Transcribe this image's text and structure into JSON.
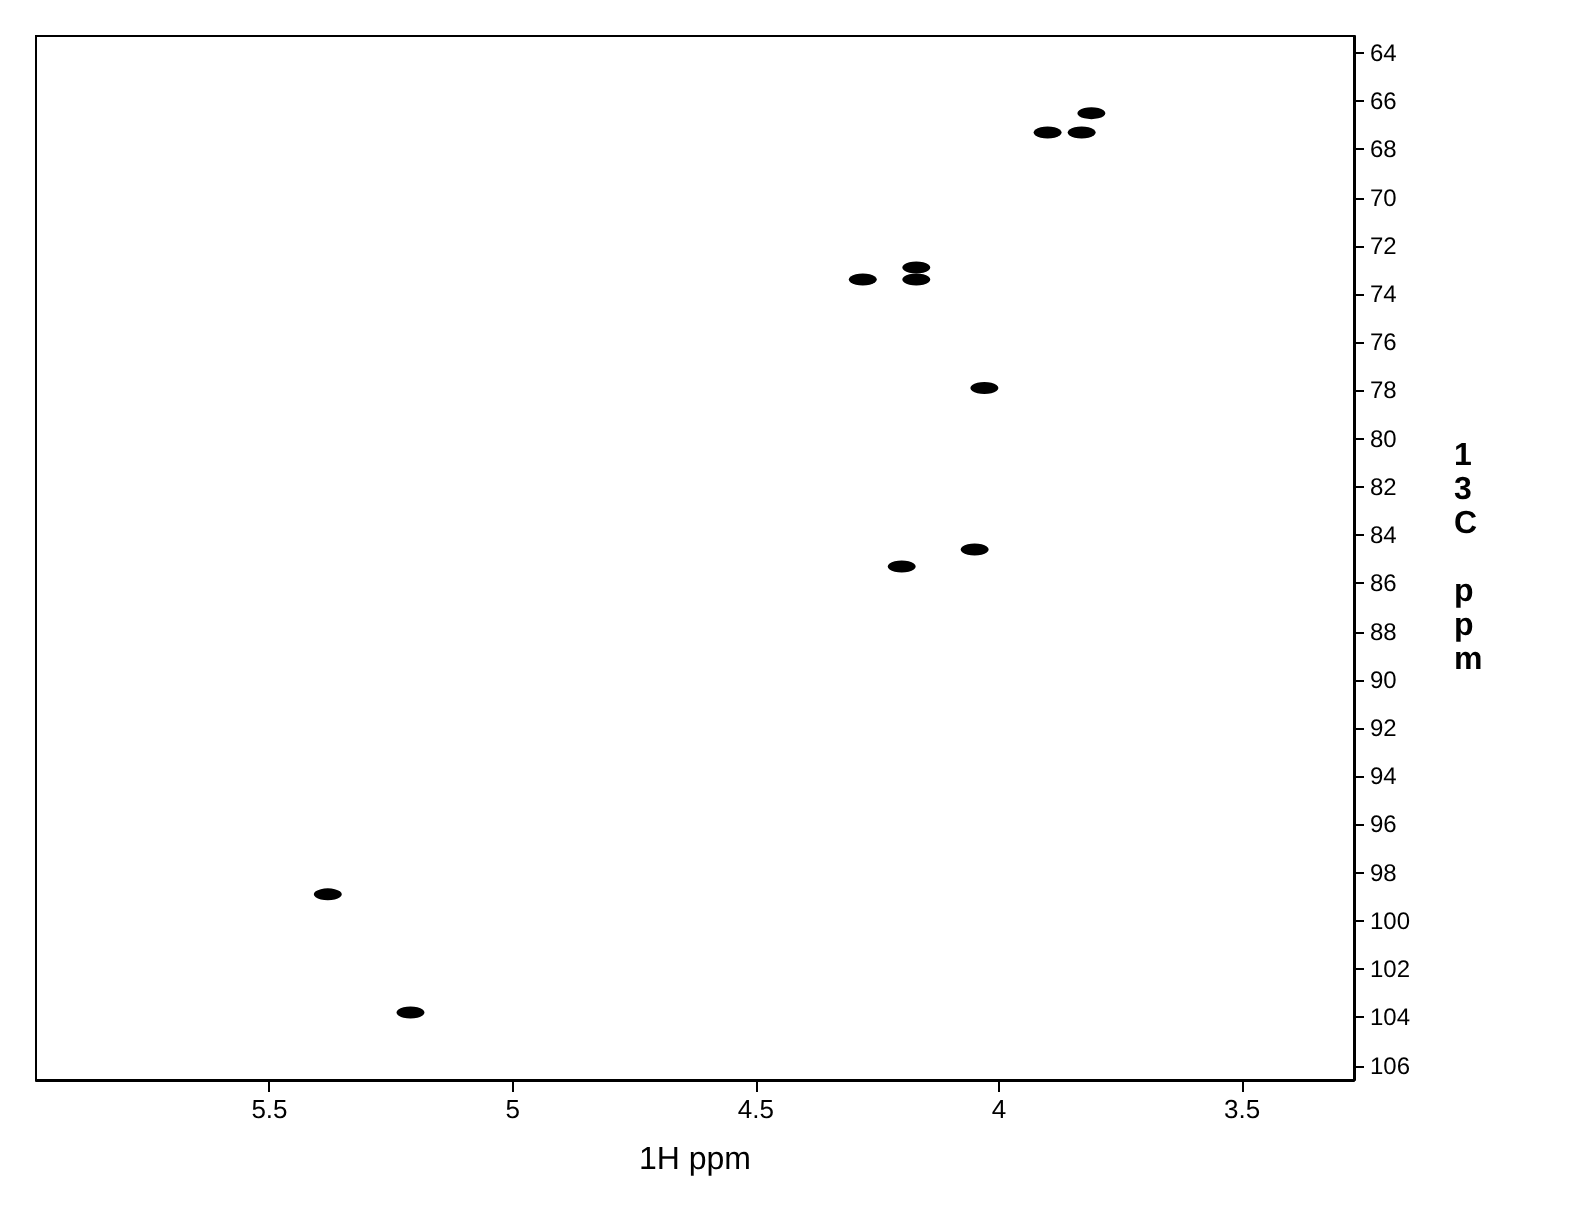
{
  "chart_data": {
    "type": "scatter",
    "xlabel": "1H ppm",
    "ylabel": "13C ppm",
    "xlim": [
      5.98,
      3.27
    ],
    "xticks": [
      5.5,
      5.0,
      4.5,
      4.0,
      3.5
    ],
    "ylim": [
      106.6,
      63.3
    ],
    "yticks": [
      64,
      66,
      68,
      70,
      72,
      74,
      76,
      78,
      80,
      82,
      84,
      86,
      88,
      90,
      92,
      94,
      96,
      98,
      100,
      102,
      104,
      106
    ],
    "x": [
      3.81,
      3.9,
      3.83,
      4.28,
      4.17,
      4.17,
      4.03,
      4.05,
      4.2,
      5.38,
      5.21
    ],
    "values": [
      66.5,
      67.3,
      67.3,
      73.4,
      72.9,
      73.4,
      77.9,
      84.6,
      85.3,
      98.9,
      103.8
    ],
    "color": "#000000",
    "marker": "circle",
    "grid": false
  }
}
